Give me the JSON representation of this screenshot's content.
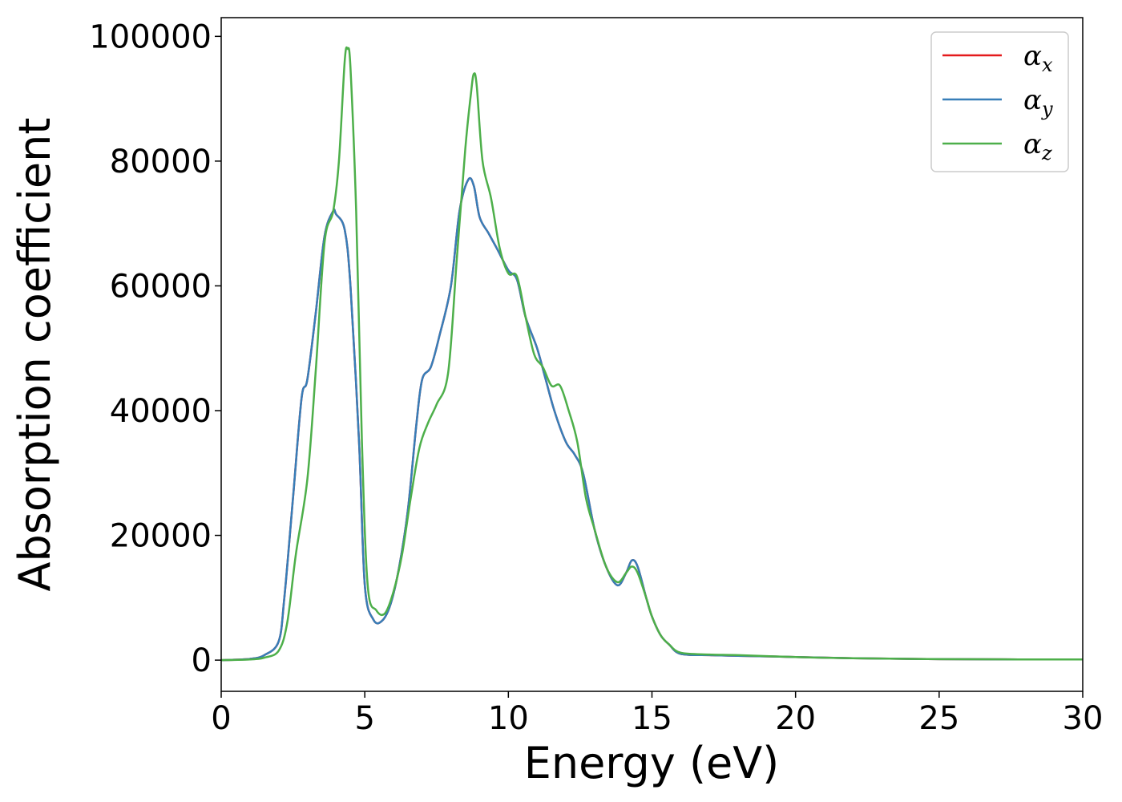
{
  "chart_data": {
    "type": "line",
    "xlabel": "Energy (eV)",
    "ylabel": "Absorption coefficient",
    "xlim": [
      0,
      30
    ],
    "ylim": [
      -5000,
      103000
    ],
    "xticks": [
      0,
      5,
      10,
      15,
      20,
      25,
      30
    ],
    "xtick_labels": [
      "0",
      "5",
      "10",
      "15",
      "20",
      "25",
      "30"
    ],
    "yticks": [
      0,
      20000,
      40000,
      60000,
      80000,
      100000
    ],
    "ytick_labels": [
      "0",
      "20000",
      "40000",
      "60000",
      "80000",
      "100000"
    ],
    "grid": false,
    "legend_position": "top-right",
    "series": [
      {
        "name": "α_x",
        "name_base": "α",
        "name_sub": "x",
        "color": "#e41a1c",
        "x": [
          0,
          1,
          1.5,
          2,
          2.2,
          2.5,
          2.8,
          3.0,
          3.3,
          3.6,
          3.9,
          4.0,
          4.3,
          4.5,
          4.8,
          5.0,
          5.3,
          5.6,
          5.9,
          6.2,
          6.5,
          6.8,
          7.0,
          7.3,
          7.6,
          8.0,
          8.3,
          8.6,
          8.8,
          9.0,
          9.3,
          9.6,
          10.0,
          10.3,
          10.6,
          11.0,
          11.3,
          11.6,
          12.0,
          12.3,
          12.6,
          13.0,
          13.4,
          13.8,
          14.1,
          14.3,
          14.5,
          14.8,
          15.0,
          15.3,
          15.6,
          16.0,
          17.0,
          18.0,
          20.0,
          22.0,
          25.0,
          30.0
        ],
        "y": [
          0,
          200,
          800,
          3000,
          10000,
          26000,
          42000,
          45000,
          56000,
          68000,
          72000,
          71500,
          69000,
          60000,
          35000,
          12000,
          6500,
          6300,
          9000,
          15000,
          24000,
          38000,
          45000,
          47000,
          52000,
          60000,
          72000,
          77000,
          76000,
          71000,
          68500,
          66000,
          62500,
          61000,
          55000,
          50000,
          45000,
          40000,
          35000,
          33000,
          30000,
          21000,
          15000,
          12000,
          14000,
          16000,
          15000,
          10000,
          7000,
          4000,
          2500,
          1000,
          800,
          700,
          500,
          300,
          150,
          100
        ]
      },
      {
        "name": "α_y",
        "name_base": "α",
        "name_sub": "y",
        "color": "#377eb8",
        "x": [
          0,
          1,
          1.5,
          2,
          2.2,
          2.5,
          2.8,
          3.0,
          3.3,
          3.6,
          3.9,
          4.0,
          4.3,
          4.5,
          4.8,
          5.0,
          5.3,
          5.6,
          5.9,
          6.2,
          6.5,
          6.8,
          7.0,
          7.3,
          7.6,
          8.0,
          8.3,
          8.6,
          8.8,
          9.0,
          9.3,
          9.6,
          10.0,
          10.3,
          10.6,
          11.0,
          11.3,
          11.6,
          12.0,
          12.3,
          12.6,
          13.0,
          13.4,
          13.8,
          14.1,
          14.3,
          14.5,
          14.8,
          15.0,
          15.3,
          15.6,
          16.0,
          17.0,
          18.0,
          20.0,
          22.0,
          25.0,
          30.0
        ],
        "y": [
          0,
          200,
          800,
          3000,
          10000,
          26000,
          42000,
          45000,
          56000,
          68000,
          72000,
          71500,
          69000,
          60000,
          35000,
          12000,
          6500,
          6300,
          9000,
          15000,
          24000,
          38000,
          45000,
          47000,
          52000,
          60000,
          72000,
          77000,
          76000,
          71000,
          68500,
          66000,
          62500,
          61000,
          55000,
          50000,
          45000,
          40000,
          35000,
          33000,
          30000,
          21000,
          15000,
          12000,
          14000,
          16000,
          15000,
          10000,
          7000,
          4000,
          2500,
          1000,
          800,
          700,
          500,
          300,
          150,
          100
        ]
      },
      {
        "name": "α_z",
        "name_base": "α",
        "name_sub": "z",
        "color": "#4daf4a",
        "x": [
          0,
          1,
          1.5,
          2,
          2.3,
          2.6,
          3.0,
          3.3,
          3.6,
          3.9,
          4.1,
          4.3,
          4.4,
          4.5,
          4.7,
          4.9,
          5.1,
          5.4,
          5.7,
          6.0,
          6.3,
          6.6,
          6.9,
          7.2,
          7.5,
          7.9,
          8.2,
          8.5,
          8.7,
          8.8,
          8.9,
          9.1,
          9.4,
          9.7,
          10.0,
          10.3,
          10.6,
          10.9,
          11.2,
          11.5,
          11.8,
          12.1,
          12.4,
          12.7,
          13.0,
          13.4,
          13.8,
          14.1,
          14.3,
          14.5,
          14.8,
          15.0,
          15.3,
          15.6,
          16.0,
          17.0,
          18.0,
          20.0,
          22.0,
          25.0,
          30.0
        ],
        "y": [
          0,
          100,
          400,
          1500,
          6000,
          17000,
          29000,
          47000,
          67000,
          72000,
          80000,
          96000,
          98000,
          95000,
          72000,
          35000,
          12000,
          8000,
          7500,
          11000,
          17000,
          26000,
          34000,
          38000,
          41000,
          46000,
          64000,
          82000,
          91000,
          94000,
          92000,
          80000,
          74000,
          66000,
          62000,
          61500,
          55000,
          49000,
          47000,
          44000,
          44000,
          40000,
          35000,
          26000,
          21000,
          15000,
          12500,
          14000,
          15000,
          14000,
          10000,
          7000,
          4000,
          2500,
          1200,
          900,
          800,
          500,
          300,
          150,
          100
        ]
      }
    ]
  }
}
